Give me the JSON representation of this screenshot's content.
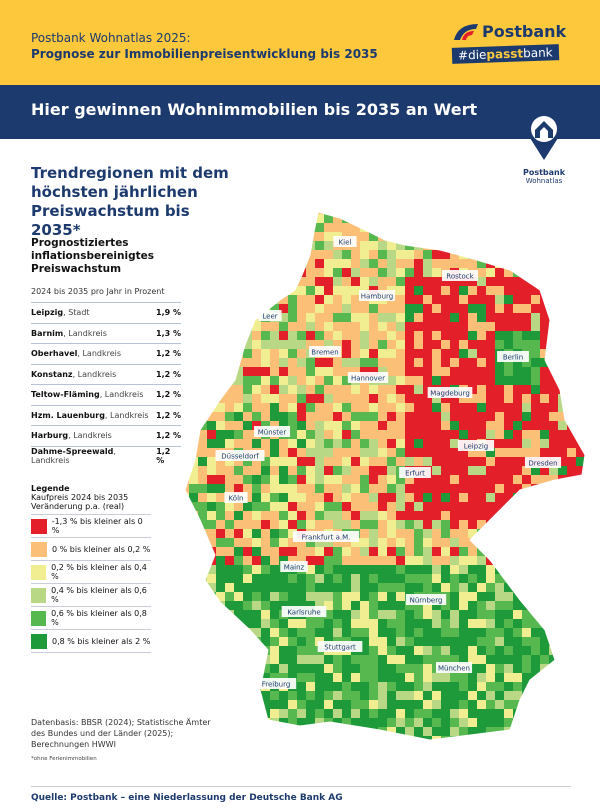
{
  "header": {
    "line1": "Postbank Wohnatlas 2025:",
    "line2": "Prognose zur Immobilienpreisentwicklung bis 2035",
    "brand": "Postbank",
    "hashtag_pre": "#die",
    "hashtag_bold": "passt",
    "hashtag_post": "bank",
    "colors": {
      "yellow": "#fdc83c",
      "navy": "#1d3a6e"
    }
  },
  "banner": {
    "title": "Hier gewinnen Wohnimmobilien bis 2035 an Wert"
  },
  "badge": {
    "line1": "Postbank",
    "line2": "Wohnatlas",
    "icon": "house-pin-icon"
  },
  "section_title": "Trendregionen mit dem höchsten jährlichen Preiswachstum bis 2035*",
  "table": {
    "title_lines": [
      "Prognostiziertes",
      "inflationsbereinigtes",
      "Preiswachstum"
    ],
    "subtitle": "2024 bis 2035 pro Jahr in Prozent",
    "rows": [
      {
        "name": "Leipzig",
        "type": ", Stadt",
        "value": "1,9 %"
      },
      {
        "name": "Barnim",
        "type": ", Landkreis",
        "value": "1,3 %"
      },
      {
        "name": "Oberhavel",
        "type": ", Landkreis",
        "value": "1,2 %"
      },
      {
        "name": "Konstanz",
        "type": ", Landkreis",
        "value": "1,2 %"
      },
      {
        "name": "Teltow-Fläming",
        "type": ", Landkreis",
        "value": "1,2 %"
      },
      {
        "name": "Hzm. Lauenburg",
        "type": ", Landkreis",
        "value": "1,2 %"
      },
      {
        "name": "Harburg",
        "type": ", Landkreis",
        "value": "1,2 %"
      },
      {
        "name": "Dahme-Spreewald",
        "type": ", Landkreis",
        "value": "1,2 %"
      }
    ]
  },
  "legend": {
    "title": "Legende",
    "sub1": "Kaufpreis 2024 bis 2035",
    "sub2": "Veränderung p.a. (real)",
    "items": [
      {
        "label": "-1,3 % bis kleiner als 0 %",
        "color": "#e3202a"
      },
      {
        "label": "0 % bis kleiner als 0,2 %",
        "color": "#fbbf77"
      },
      {
        "label": "0,2 % bis kleiner als 0,4 %",
        "color": "#f1ee91"
      },
      {
        "label": "0,4 % bis kleiner als 0,6 %",
        "color": "#b9d886"
      },
      {
        "label": "0,6 % bis kleiner als 0,8 %",
        "color": "#56b84f"
      },
      {
        "label": "0,8 % bis kleiner als 2 %",
        "color": "#1e9a3a"
      }
    ]
  },
  "source": "Datenbasis: BBSR (2024); Statistische Ämter des Bundes und der Länder (2025); Berechnungen HWWI",
  "footnote": "*ohne Ferienimmobilien",
  "footer": "Quelle: Postbank – eine Niederlassung der Deutsche Bank AG",
  "map": {
    "cities": [
      "Kiel",
      "Rostock",
      "Hamburg",
      "Leer",
      "Bremen",
      "Berlin",
      "Hannover",
      "Magdeburg",
      "Münster",
      "Leipzig",
      "Düsseldorf",
      "Dresden",
      "Erfurt",
      "Köln",
      "Frankfurt a.M.",
      "Mainz",
      "Nürnberg",
      "Karlsruhe",
      "Stuttgart",
      "München",
      "Freiburg"
    ]
  }
}
